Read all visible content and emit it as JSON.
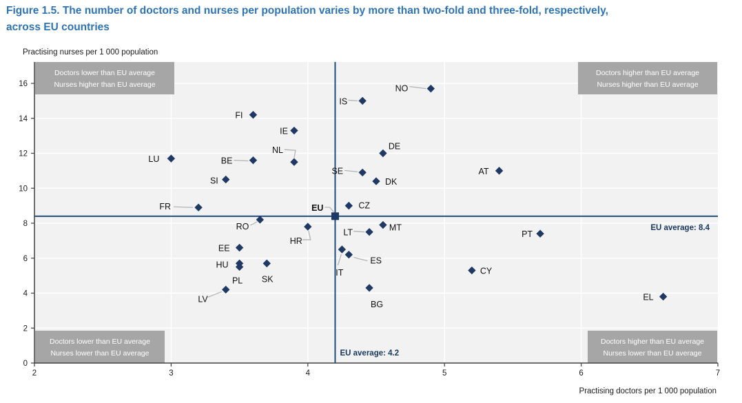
{
  "title": {
    "line1": "Figure 1.5. The number of doctors and nurses per population varies by more than two-fold and three-fold, respectively,",
    "line2": "across EU countries"
  },
  "chart_data": {
    "type": "scatter",
    "title": "Figure 1.5. The number of doctors and nurses per population varies by more than two-fold and three-fold, respectively, across EU countries",
    "xlabel": "Practising doctors per 1 000 population",
    "ylabel": "Practising nurses per 1 000 population",
    "xlim": [
      2,
      7
    ],
    "ylim": [
      0,
      16
    ],
    "x_ticks": [
      2,
      3,
      4,
      5,
      6,
      7
    ],
    "y_ticks": [
      0,
      2,
      4,
      6,
      8,
      10,
      12,
      14,
      16
    ],
    "grid": true,
    "eu_average": {
      "doctors": 4.2,
      "nurses": 8.4,
      "doctors_label": "EU average: 4.2",
      "nurses_label": "EU average: 8.4"
    },
    "quadrant_labels": {
      "top_left": [
        "Doctors lower than EU average",
        "Nurses higher than EU average"
      ],
      "top_right": [
        "Doctors higher than EU average",
        "Nurses higher than EU average"
      ],
      "bottom_left": [
        "Doctors lower than EU average",
        "Nurses lower than EU average"
      ],
      "bottom_right": [
        "Doctors higher than EU average",
        "Nurses lower than EU average"
      ]
    },
    "points": [
      {
        "code": "LU",
        "doctors": 3.0,
        "nurses": 11.7
      },
      {
        "code": "FR",
        "doctors": 3.2,
        "nurses": 8.9
      },
      {
        "code": "SI",
        "doctors": 3.4,
        "nurses": 10.5
      },
      {
        "code": "LV",
        "doctors": 3.4,
        "nurses": 4.2
      },
      {
        "code": "EE",
        "doctors": 3.5,
        "nurses": 6.6
      },
      {
        "code": "HU",
        "doctors": 3.5,
        "nurses": 5.7
      },
      {
        "code": "PL",
        "doctors": 3.5,
        "nurses": 5.5
      },
      {
        "code": "BE",
        "doctors": 3.6,
        "nurses": 11.6
      },
      {
        "code": "FI",
        "doctors": 3.6,
        "nurses": 14.2
      },
      {
        "code": "RO",
        "doctors": 3.65,
        "nurses": 8.2
      },
      {
        "code": "SK",
        "doctors": 3.7,
        "nurses": 5.7
      },
      {
        "code": "IE",
        "doctors": 3.9,
        "nurses": 13.3
      },
      {
        "code": "NL",
        "doctors": 3.9,
        "nurses": 11.5
      },
      {
        "code": "HR",
        "doctors": 4.0,
        "nurses": 7.8
      },
      {
        "code": "EU",
        "doctors": 4.2,
        "nurses": 8.4,
        "marker": "square",
        "bold": true
      },
      {
        "code": "IT",
        "doctors": 4.25,
        "nurses": 6.5
      },
      {
        "code": "CZ",
        "doctors": 4.3,
        "nurses": 9.0
      },
      {
        "code": "ES",
        "doctors": 4.3,
        "nurses": 6.2
      },
      {
        "code": "SE",
        "doctors": 4.4,
        "nurses": 10.9
      },
      {
        "code": "IS",
        "doctors": 4.4,
        "nurses": 15.0
      },
      {
        "code": "LT",
        "doctors": 4.45,
        "nurses": 7.5
      },
      {
        "code": "BG",
        "doctors": 4.45,
        "nurses": 4.3
      },
      {
        "code": "DK",
        "doctors": 4.5,
        "nurses": 10.4
      },
      {
        "code": "DE",
        "doctors": 4.55,
        "nurses": 12.0
      },
      {
        "code": "MT",
        "doctors": 4.55,
        "nurses": 7.9
      },
      {
        "code": "NO",
        "doctors": 4.9,
        "nurses": 15.7
      },
      {
        "code": "CY",
        "doctors": 5.2,
        "nurses": 5.3
      },
      {
        "code": "AT",
        "doctors": 5.4,
        "nurses": 11.0
      },
      {
        "code": "PT",
        "doctors": 5.7,
        "nurses": 7.4
      },
      {
        "code": "EL",
        "doctors": 6.6,
        "nurses": 3.8
      }
    ]
  },
  "colors": {
    "title_blue": "#2E74B5",
    "marker_navy": "#1F3864",
    "avg_line_navy": "#1F4E79",
    "avg_label_navy": "#17375E",
    "quadrant_gray": "#A6A6A6",
    "quadrant_text": "#FFFFFF",
    "plot_background": "#F2F2F2",
    "gridline": "#FFFFFF",
    "axis": "#404040",
    "leader_gray": "#B3B3B3",
    "text_black": "#1A1A1A"
  }
}
